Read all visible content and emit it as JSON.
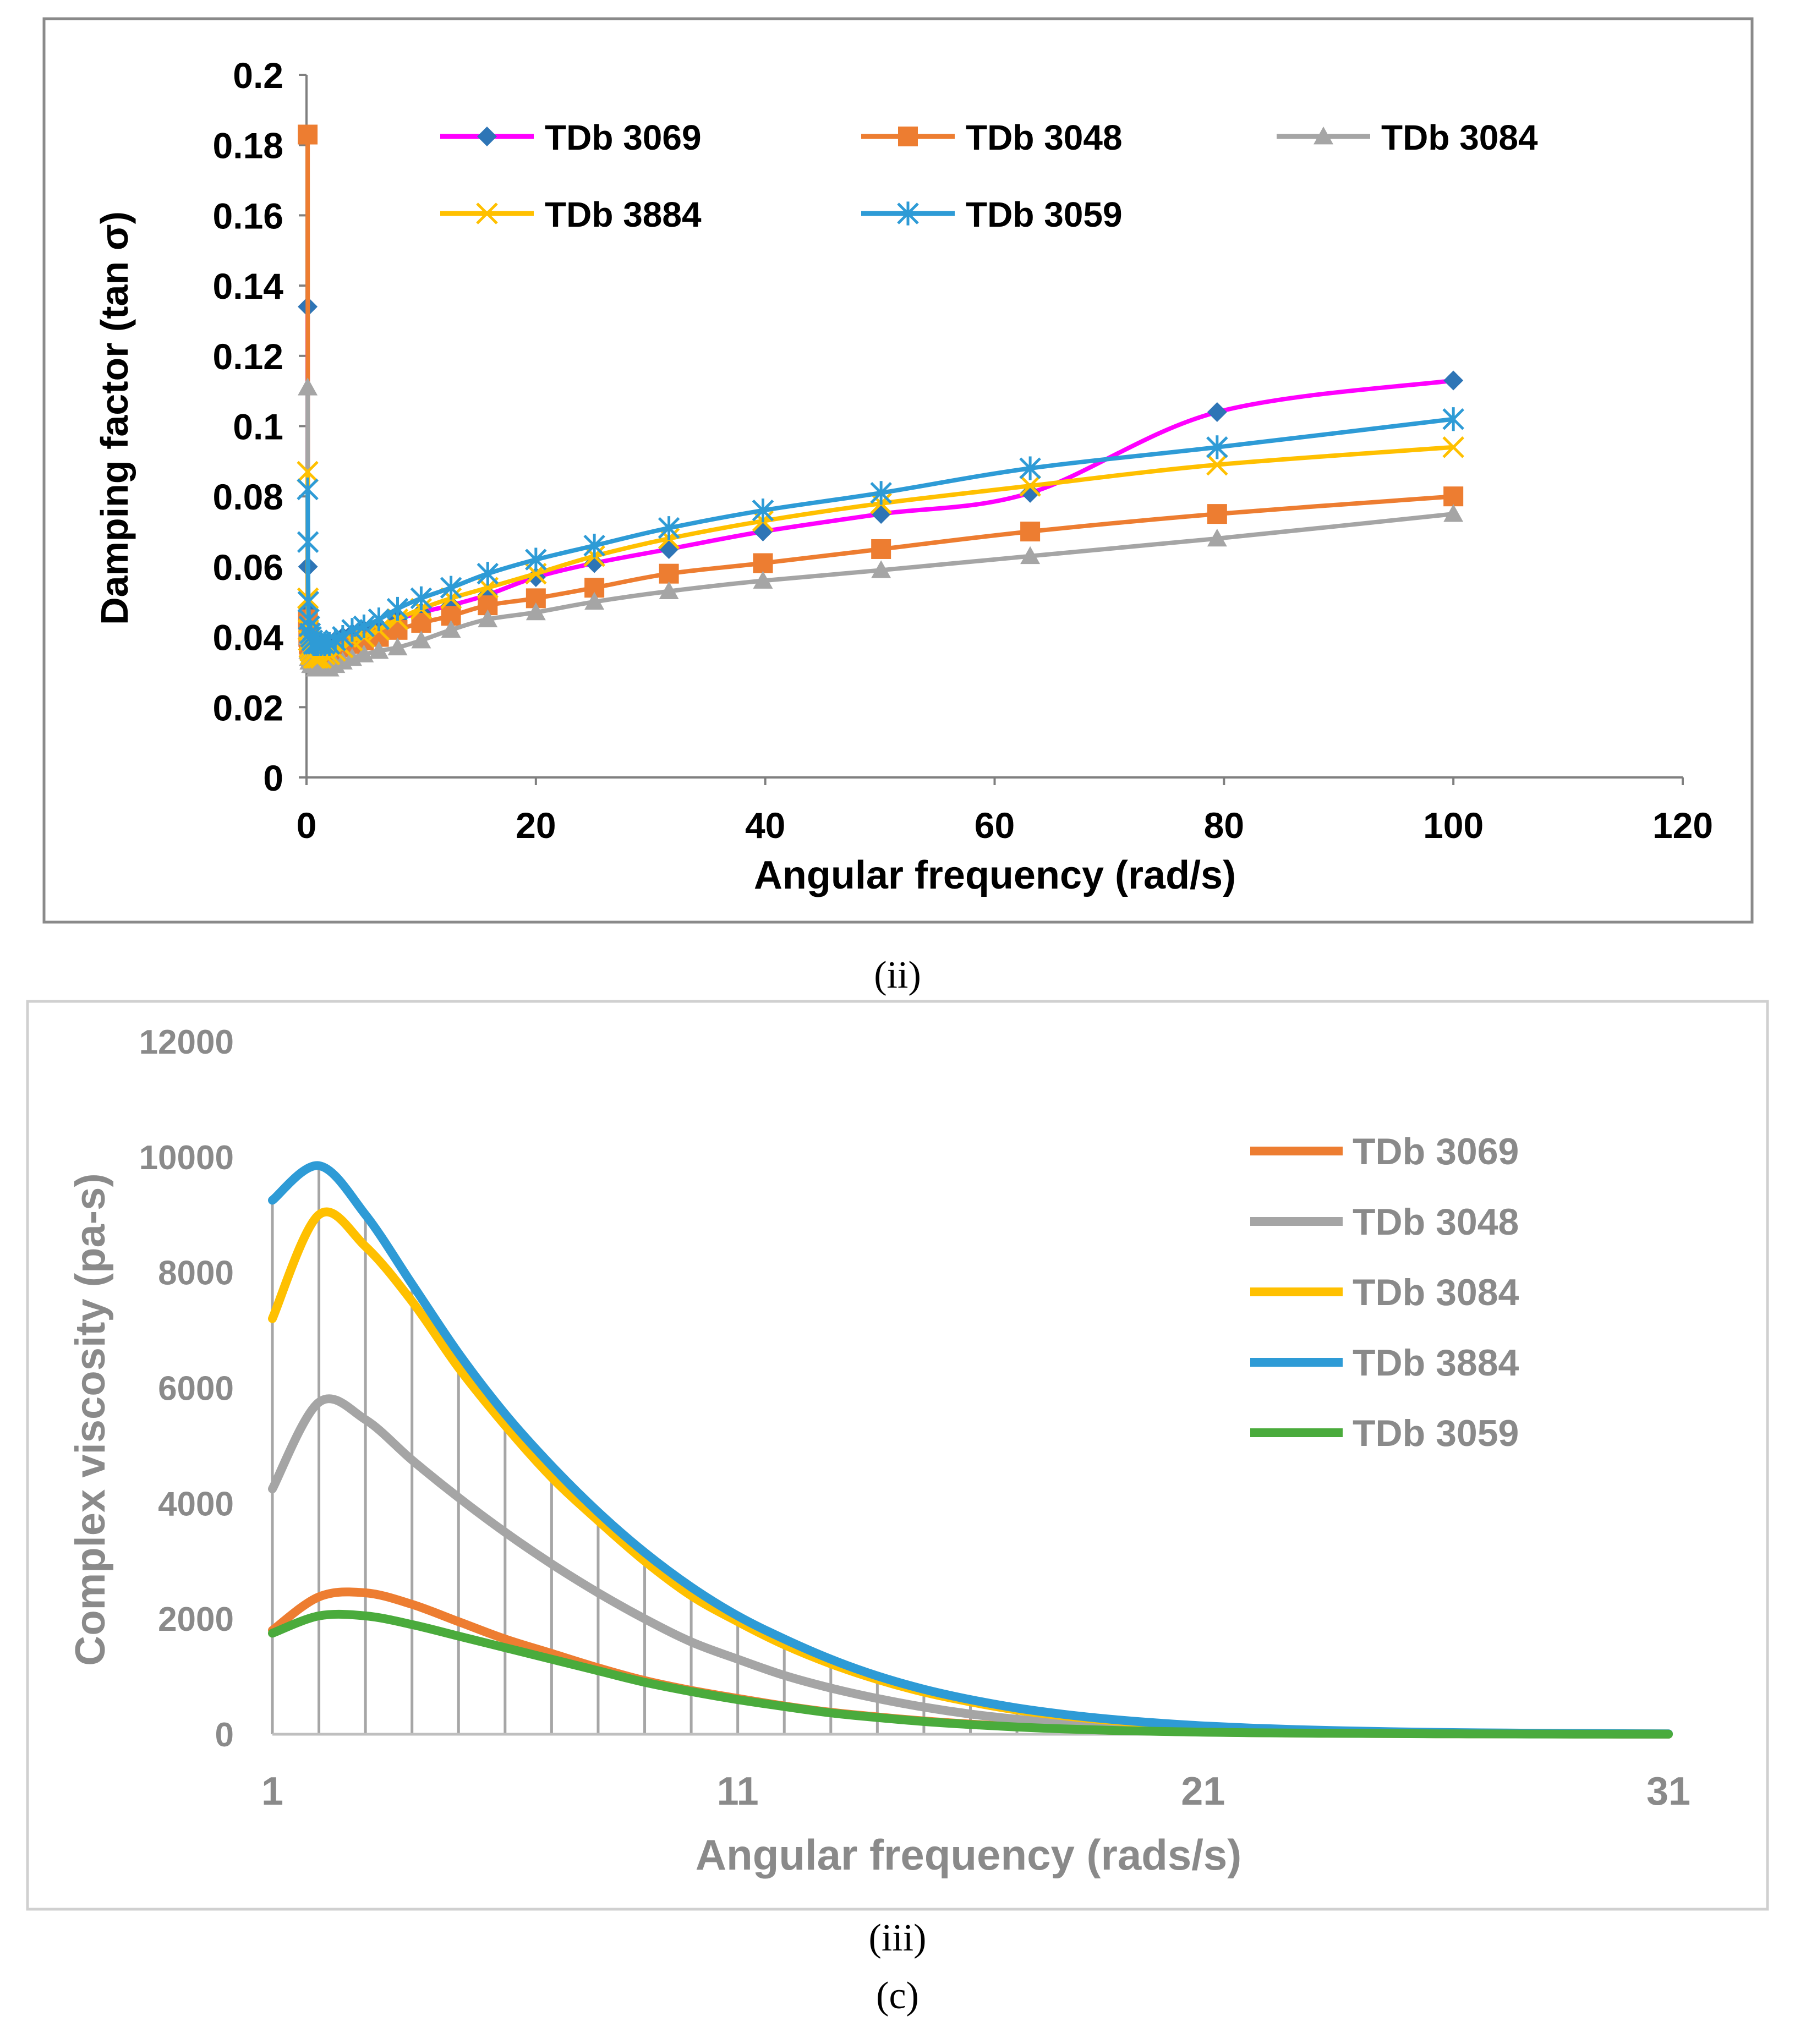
{
  "captions": {
    "panel_ii": "(ii)",
    "panel_iii": "(iii)",
    "figure": "(c)"
  },
  "chart_data": [
    {
      "type": "line",
      "id": "damping",
      "title": "",
      "xlabel": "Angular frequency (rad/s)",
      "ylabel": "Damping factor (tan σ)",
      "xlim": [
        0,
        120
      ],
      "ylim": [
        0,
        0.2
      ],
      "xticks": [
        0,
        20,
        40,
        60,
        80,
        100,
        120
      ],
      "xtick_labels": [
        "0",
        "20",
        "40",
        "60",
        "80",
        "100",
        "120"
      ],
      "yticks": [
        0,
        0.02,
        0.04,
        0.06,
        0.08,
        0.1,
        0.12,
        0.14,
        0.16,
        0.18,
        0.2
      ],
      "ytick_labels": [
        "0",
        "0.02",
        "0.04",
        "0.06",
        "0.08",
        "0.1",
        "0.12",
        "0.14",
        "0.16",
        "0.18",
        "0.2"
      ],
      "grid": false,
      "legend_position": "top",
      "x": [
        0.1,
        0.126,
        0.158,
        0.2,
        0.251,
        0.316,
        0.398,
        0.501,
        0.631,
        0.794,
        1,
        1.26,
        1.58,
        2,
        2.51,
        3.16,
        3.98,
        5.01,
        6.31,
        7.94,
        10,
        12.6,
        15.8,
        20,
        25.1,
        31.6,
        39.8,
        50.1,
        63.1,
        79.4,
        100
      ],
      "series": [
        {
          "name": "TDb 3069",
          "color": "#ff00ff",
          "marker_color": "#2e75b6",
          "marker": "diamond",
          "values": [
            0.134,
            0.06,
            0.048,
            0.044,
            0.042,
            0.041,
            0.04,
            0.039,
            0.038,
            0.037,
            0.037,
            0.037,
            0.037,
            0.038,
            0.039,
            0.04,
            0.041,
            0.042,
            0.043,
            0.045,
            0.047,
            0.049,
            0.052,
            0.057,
            0.061,
            0.065,
            0.07,
            0.075,
            0.081,
            0.104,
            0.113
          ]
        },
        {
          "name": "TDb 3048",
          "color": "#ed7d31",
          "marker_color": "#ed7d31",
          "marker": "square",
          "values": [
            0.183,
            0.045,
            0.04,
            0.038,
            0.037,
            0.036,
            0.036,
            0.035,
            0.035,
            0.035,
            0.035,
            0.035,
            0.035,
            0.035,
            0.036,
            0.037,
            0.038,
            0.039,
            0.04,
            0.042,
            0.044,
            0.046,
            0.049,
            0.051,
            0.054,
            0.058,
            0.061,
            0.065,
            0.07,
            0.075,
            0.08
          ]
        },
        {
          "name": "TDb 3084",
          "color": "#a5a5a5",
          "marker_color": "#a5a5a5",
          "marker": "triangle",
          "values": [
            0.111,
            0.04,
            0.036,
            0.034,
            0.033,
            0.033,
            0.032,
            0.032,
            0.032,
            0.031,
            0.031,
            0.031,
            0.031,
            0.031,
            0.032,
            0.033,
            0.034,
            0.035,
            0.036,
            0.037,
            0.039,
            0.042,
            0.045,
            0.047,
            0.05,
            0.053,
            0.056,
            0.059,
            0.063,
            0.068,
            0.075
          ]
        },
        {
          "name": "TDb 3884",
          "color": "#ffc000",
          "marker_color": "#ffc000",
          "marker": "x",
          "values": [
            0.087,
            0.051,
            0.042,
            0.039,
            0.037,
            0.036,
            0.035,
            0.035,
            0.034,
            0.034,
            0.034,
            0.034,
            0.035,
            0.035,
            0.036,
            0.037,
            0.039,
            0.04,
            0.042,
            0.045,
            0.048,
            0.051,
            0.054,
            0.058,
            0.063,
            0.068,
            0.073,
            0.078,
            0.083,
            0.089,
            0.094
          ]
        },
        {
          "name": "TDb 3059",
          "color": "#2e9bd6",
          "marker_color": "#2e9bd6",
          "marker": "asterisk",
          "values": [
            0.082,
            0.067,
            0.05,
            0.045,
            0.043,
            0.041,
            0.04,
            0.039,
            0.038,
            0.038,
            0.038,
            0.038,
            0.038,
            0.038,
            0.039,
            0.04,
            0.042,
            0.043,
            0.045,
            0.048,
            0.051,
            0.054,
            0.058,
            0.062,
            0.066,
            0.071,
            0.076,
            0.081,
            0.088,
            0.094,
            0.102
          ]
        }
      ]
    },
    {
      "type": "line",
      "id": "viscosity",
      "title": "",
      "xlabel": "Angular frequency (rads/s)",
      "ylabel": "Complex viscosity (pa-s)",
      "xlim": [
        1,
        31
      ],
      "ylim": [
        0,
        12000
      ],
      "xticks": [
        1,
        11,
        21,
        31
      ],
      "xtick_labels": [
        "1",
        "11",
        "21",
        "31"
      ],
      "yticks": [
        0,
        2000,
        4000,
        6000,
        8000,
        10000,
        12000
      ],
      "ytick_labels": [
        "0",
        "2000",
        "4000",
        "6000",
        "8000",
        "10000",
        "12000"
      ],
      "grid": false,
      "drop_lines": true,
      "legend_position": "right",
      "x": [
        1,
        2,
        3,
        4,
        5,
        6,
        7,
        8,
        9,
        10,
        11,
        12,
        13,
        14,
        15,
        16,
        17,
        18,
        19,
        20,
        21,
        22,
        23,
        24,
        25,
        26,
        27,
        28,
        29,
        30,
        31
      ],
      "series": [
        {
          "name": "TDb 3069",
          "color": "#ed7d31",
          "values": [
            1800,
            2380,
            2450,
            2250,
            1950,
            1650,
            1400,
            1150,
            930,
            760,
            620,
            490,
            380,
            300,
            230,
            175,
            130,
            95,
            70,
            52,
            38,
            28,
            21,
            16,
            12,
            9,
            7,
            5,
            4,
            3,
            2
          ]
        },
        {
          "name": "TDb 3048",
          "color": "#a5a5a5",
          "values": [
            4250,
            5750,
            5450,
            4750,
            4100,
            3500,
            2950,
            2450,
            2000,
            1600,
            1300,
            1020,
            800,
            620,
            470,
            350,
            260,
            190,
            140,
            100,
            72,
            52,
            38,
            28,
            20,
            15,
            11,
            8,
            6,
            4,
            3
          ]
        },
        {
          "name": "TDb 3084",
          "color": "#ffc000",
          "values": [
            7200,
            9000,
            8450,
            7500,
            6350,
            5350,
            4450,
            3700,
            3000,
            2400,
            1950,
            1550,
            1220,
            950,
            730,
            560,
            420,
            320,
            240,
            175,
            130,
            95,
            70,
            52,
            38,
            28,
            20,
            15,
            11,
            8,
            6
          ]
        },
        {
          "name": "TDb 3884",
          "color": "#2e9bd6",
          "values": [
            9250,
            9850,
            9000,
            7800,
            6600,
            5550,
            4650,
            3850,
            3150,
            2550,
            2050,
            1650,
            1300,
            1010,
            780,
            600,
            455,
            345,
            260,
            195,
            145,
            107,
            80,
            60,
            44,
            32,
            24,
            18,
            13,
            10,
            7
          ]
        },
        {
          "name": "TDb 3059",
          "color": "#4aab3c",
          "values": [
            1750,
            2050,
            2050,
            1900,
            1700,
            1500,
            1300,
            1100,
            900,
            740,
            600,
            480,
            370,
            290,
            220,
            168,
            125,
            92,
            68,
            50,
            36,
            27,
            20,
            15,
            11,
            8,
            6,
            4,
            3,
            2,
            2
          ]
        }
      ]
    }
  ]
}
